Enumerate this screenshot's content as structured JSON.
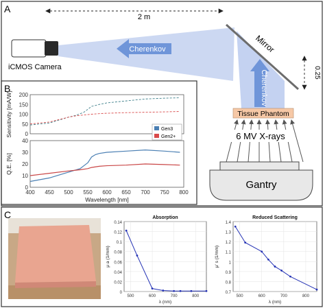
{
  "panels": {
    "A": {
      "letter": "A"
    },
    "B": {
      "letter": "B"
    },
    "C": {
      "letter": "C"
    }
  },
  "schematic": {
    "distance_label": "2 m",
    "mirror_label": "Mirror",
    "side_distance_label": "0.25",
    "camera_label": "iCMOS Camera",
    "cherenkov_horizontal": "Cherenkov",
    "cherenkov_vertical": "Cherenkov",
    "phantom_label": "Tissue Phantom",
    "xray_label": "6 MV X-rays",
    "gantry_label": "Gantry",
    "colors": {
      "beam": "#b8c9ee",
      "arrow": "#6f95d9",
      "phantom": "#f6c8a6",
      "gantry": "#e6e6e6"
    }
  },
  "chart_data": [
    {
      "type": "line",
      "panel": "B-top",
      "xlabel": "",
      "ylabel": "Sensitivity [mA/W]",
      "xlim": [
        400,
        800
      ],
      "ylim": [
        0,
        200
      ],
      "yticks": [
        "0",
        "50",
        "100",
        "150",
        "200"
      ],
      "legend": {
        "placement": "center-right",
        "entries": [
          "Gen3",
          "Gen2+"
        ]
      },
      "x": [
        400,
        450,
        500,
        520,
        540,
        560,
        580,
        600,
        650,
        700,
        750,
        790
      ],
      "series": [
        {
          "name": "Gen3",
          "color": "#3d7f8a",
          "values": [
            45,
            55,
            85,
            95,
            110,
            140,
            150,
            158,
            168,
            178,
            182,
            184
          ]
        },
        {
          "name": "Gen2+",
          "color": "#d94a4a",
          "values": [
            50,
            60,
            85,
            92,
            96,
            100,
            103,
            105,
            108,
            110,
            112,
            114
          ]
        }
      ]
    },
    {
      "type": "line",
      "panel": "B-bottom",
      "xlabel": "Wavelength [nm]",
      "ylabel": "Q.E. [%]",
      "xlim": [
        400,
        800
      ],
      "ylim": [
        0,
        40
      ],
      "xticks": [
        "400",
        "450",
        "500",
        "550",
        "600",
        "650",
        "700",
        "750",
        "800"
      ],
      "yticks": [
        "0",
        "10",
        "20",
        "30",
        "40"
      ],
      "x": [
        400,
        450,
        500,
        530,
        550,
        560,
        570,
        580,
        600,
        650,
        700,
        750,
        790
      ],
      "series": [
        {
          "name": "Gen3",
          "color": "#4a7fb3",
          "values": [
            5,
            8,
            13,
            16,
            21,
            26,
            28,
            29,
            30,
            31,
            32,
            31,
            30
          ]
        },
        {
          "name": "Gen2+",
          "color": "#c94545",
          "values": [
            10,
            12,
            14,
            15,
            16,
            17,
            17.5,
            18,
            18.5,
            19,
            20,
            19.5,
            19
          ]
        }
      ]
    },
    {
      "type": "line",
      "panel": "C-absorption",
      "title": "Absorption",
      "xlabel": "λ (nm)",
      "ylabel": "μ a (1/mm)",
      "xlim": [
        470,
        850
      ],
      "ylim": [
        0,
        0.14
      ],
      "xticks": [
        "500",
        "600",
        "700",
        "800"
      ],
      "yticks": [
        "0",
        "0.02",
        "0.04",
        "0.06",
        "0.08",
        "0.1",
        "0.12",
        "0.14"
      ],
      "x": [
        480,
        530,
        600,
        650,
        700,
        730,
        780,
        850
      ],
      "series": [
        {
          "name": "",
          "color": "#2533b5",
          "values": [
            0.122,
            0.072,
            0.006,
            0.002,
            0.001,
            0.001,
            0.001,
            0.001
          ]
        }
      ]
    },
    {
      "type": "line",
      "panel": "C-scattering",
      "title": "Reduced Scattering",
      "xlabel": "λ (nm)",
      "ylabel": "μ' s (1/mm)",
      "xlim": [
        470,
        850
      ],
      "ylim": [
        0.7,
        1.4
      ],
      "xticks": [
        "500",
        "600",
        "700",
        "800"
      ],
      "yticks": [
        "0.7",
        "0.8",
        "0.9",
        "1",
        "1.1",
        "1.2",
        "1.3",
        "1.4"
      ],
      "x": [
        480,
        525,
        600,
        630,
        660,
        690,
        730,
        850
      ],
      "series": [
        {
          "name": "",
          "color": "#2533b5",
          "values": [
            1.35,
            1.19,
            1.1,
            1.02,
            0.95,
            0.91,
            0.85,
            0.72
          ]
        }
      ]
    }
  ]
}
